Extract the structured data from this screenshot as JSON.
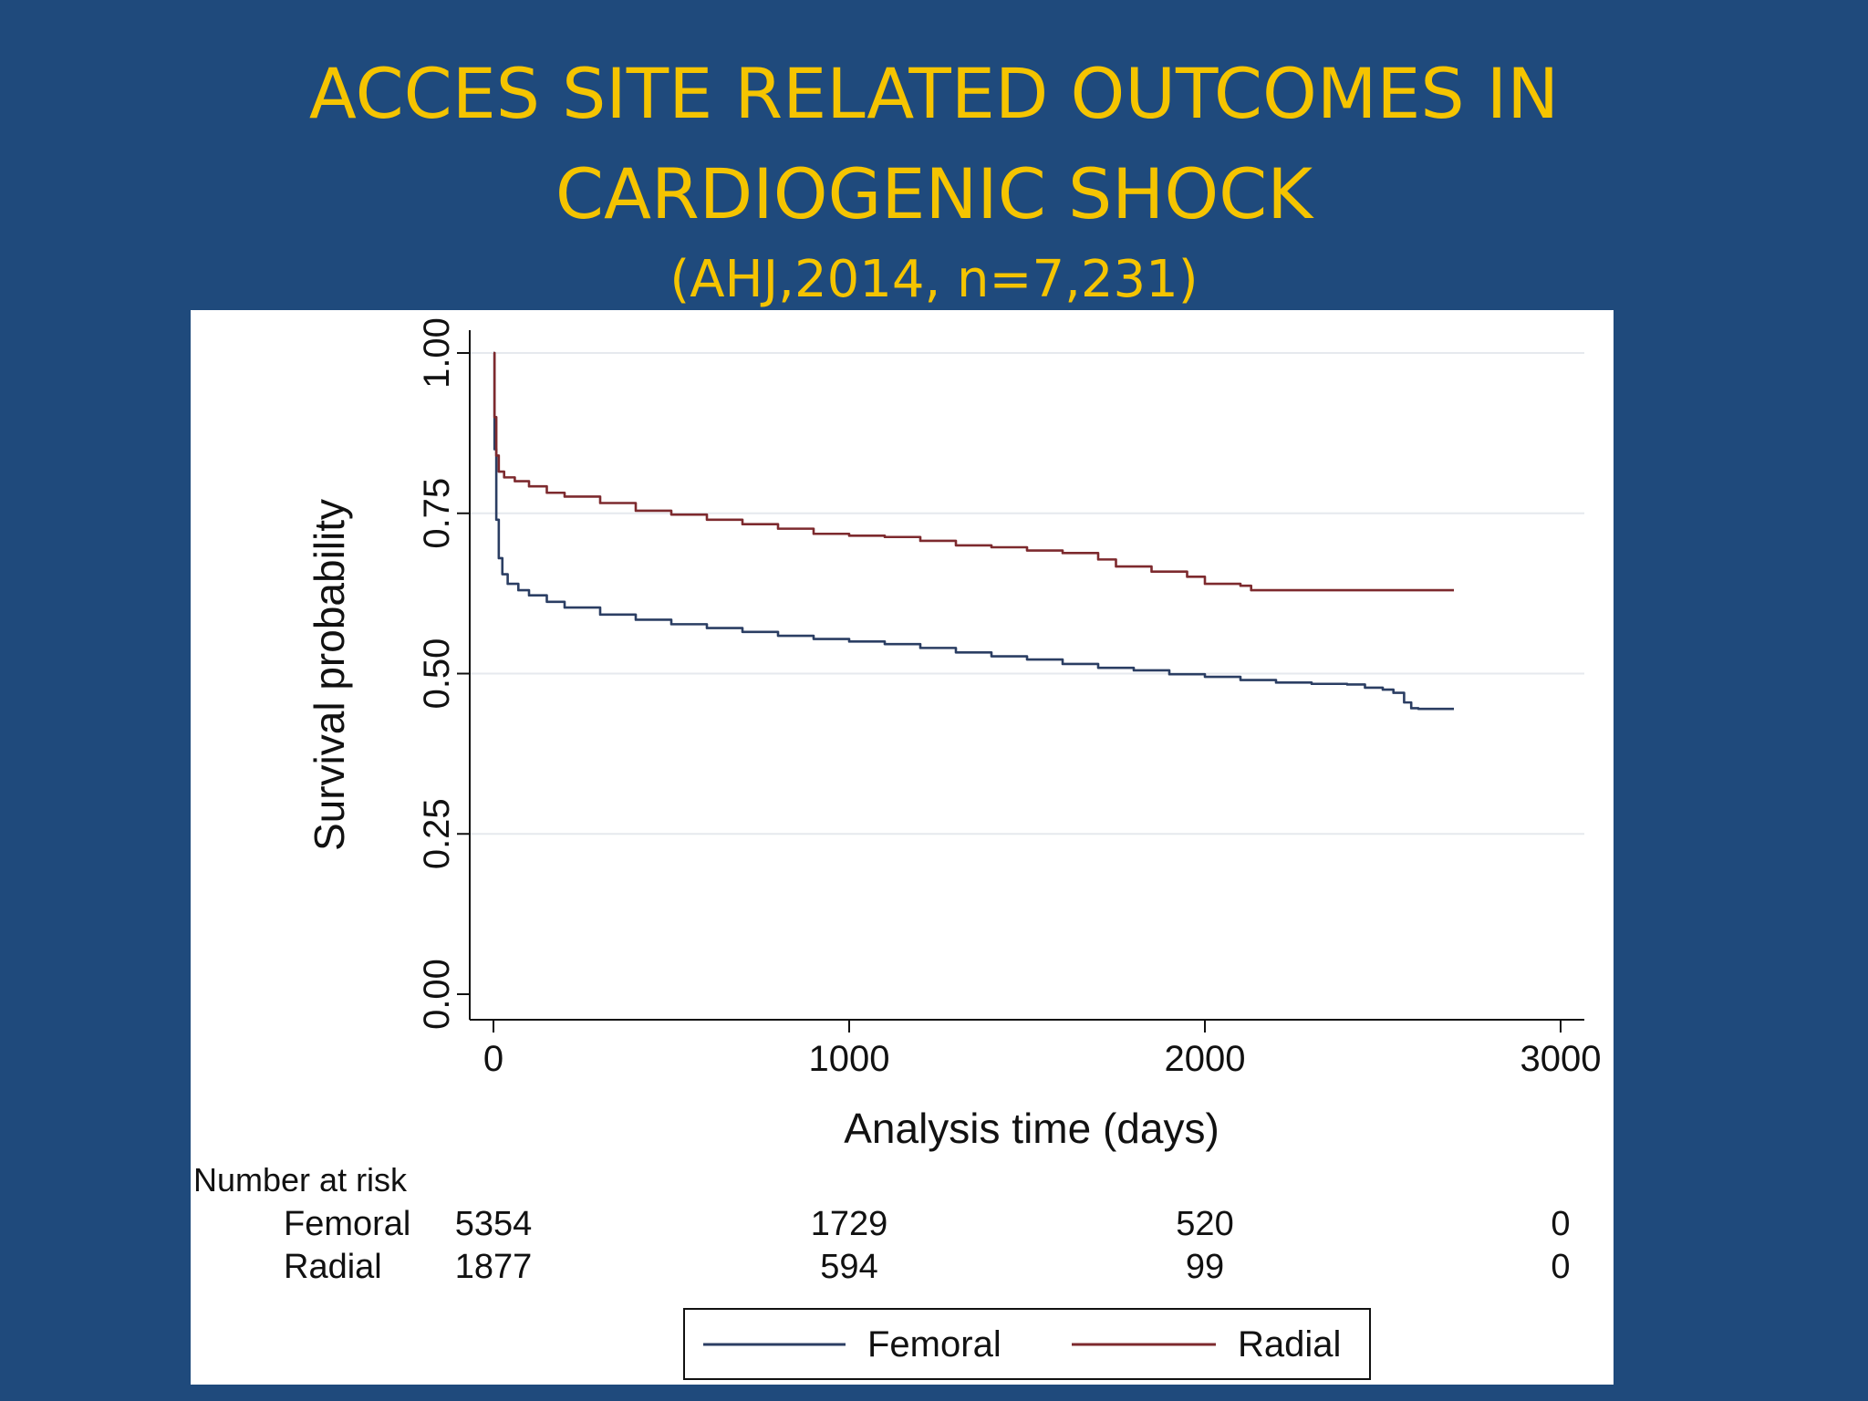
{
  "slide": {
    "title_line1": "ACCES SITE RELATED OUTCOMES IN",
    "title_line2": "CARDIOGENIC SHOCK",
    "subtitle": "(AHJ,2014, n=7,231)"
  },
  "colors": {
    "background": "#1f4a7c",
    "title": "#f5c400",
    "femoral": "#2b3e63",
    "radial": "#7d2a2e"
  },
  "chart_data": {
    "type": "line",
    "xlabel": "Analysis time (days)",
    "ylabel": "Survival probability",
    "xlim": [
      0,
      3000
    ],
    "ylim": [
      0,
      1
    ],
    "x_ticks": [
      0,
      1000,
      2000,
      3000
    ],
    "x_tick_labels": [
      "0",
      "1000",
      "2000",
      "3000"
    ],
    "y_ticks": [
      0,
      0.25,
      0.5,
      0.75,
      1
    ],
    "y_tick_labels": [
      "0.00",
      "0.25",
      "0.50",
      "0.75",
      "1.00"
    ],
    "grid": true,
    "legend": "bottom",
    "series": [
      {
        "name": "Femoral",
        "color": "#2b3e63",
        "points": [
          [
            0,
            1.0
          ],
          [
            3,
            0.85
          ],
          [
            8,
            0.74
          ],
          [
            15,
            0.68
          ],
          [
            25,
            0.655
          ],
          [
            40,
            0.64
          ],
          [
            70,
            0.63
          ],
          [
            100,
            0.622
          ],
          [
            150,
            0.612
          ],
          [
            200,
            0.603
          ],
          [
            300,
            0.592
          ],
          [
            400,
            0.584
          ],
          [
            500,
            0.577
          ],
          [
            600,
            0.571
          ],
          [
            700,
            0.565
          ],
          [
            800,
            0.559
          ],
          [
            900,
            0.554
          ],
          [
            1000,
            0.55
          ],
          [
            1100,
            0.546
          ],
          [
            1200,
            0.54
          ],
          [
            1300,
            0.533
          ],
          [
            1400,
            0.527
          ],
          [
            1500,
            0.522
          ],
          [
            1600,
            0.515
          ],
          [
            1700,
            0.509
          ],
          [
            1800,
            0.505
          ],
          [
            1900,
            0.499
          ],
          [
            2000,
            0.495
          ],
          [
            2100,
            0.49
          ],
          [
            2200,
            0.486
          ],
          [
            2300,
            0.484
          ],
          [
            2400,
            0.483
          ],
          [
            2450,
            0.478
          ],
          [
            2500,
            0.475
          ],
          [
            2530,
            0.47
          ],
          [
            2560,
            0.455
          ],
          [
            2580,
            0.446
          ],
          [
            2600,
            0.445
          ],
          [
            2700,
            0.445
          ]
        ]
      },
      {
        "name": "Radial",
        "color": "#7d2a2e",
        "points": [
          [
            0,
            1.0
          ],
          [
            3,
            0.9
          ],
          [
            8,
            0.84
          ],
          [
            15,
            0.815
          ],
          [
            30,
            0.806
          ],
          [
            60,
            0.8
          ],
          [
            100,
            0.792
          ],
          [
            150,
            0.782
          ],
          [
            200,
            0.776
          ],
          [
            300,
            0.766
          ],
          [
            400,
            0.754
          ],
          [
            500,
            0.748
          ],
          [
            600,
            0.74
          ],
          [
            700,
            0.733
          ],
          [
            800,
            0.726
          ],
          [
            900,
            0.718
          ],
          [
            1000,
            0.715
          ],
          [
            1100,
            0.713
          ],
          [
            1200,
            0.707
          ],
          [
            1300,
            0.7
          ],
          [
            1400,
            0.697
          ],
          [
            1500,
            0.692
          ],
          [
            1600,
            0.688
          ],
          [
            1700,
            0.678
          ],
          [
            1750,
            0.667
          ],
          [
            1850,
            0.659
          ],
          [
            1950,
            0.651
          ],
          [
            2000,
            0.64
          ],
          [
            2100,
            0.637
          ],
          [
            2130,
            0.63
          ],
          [
            2200,
            0.63
          ],
          [
            2700,
            0.63
          ]
        ]
      }
    ],
    "risk_table": {
      "heading": "Number at risk",
      "columns_at": [
        0,
        1000,
        2000,
        3000
      ],
      "rows": [
        {
          "label": "Femoral",
          "values": [
            "5354",
            "1729",
            "520",
            "0"
          ]
        },
        {
          "label": "Radial",
          "values": [
            "1877",
            "594",
            "99",
            "0"
          ]
        }
      ]
    },
    "legend_entries": [
      "Femoral",
      "Radial"
    ]
  }
}
